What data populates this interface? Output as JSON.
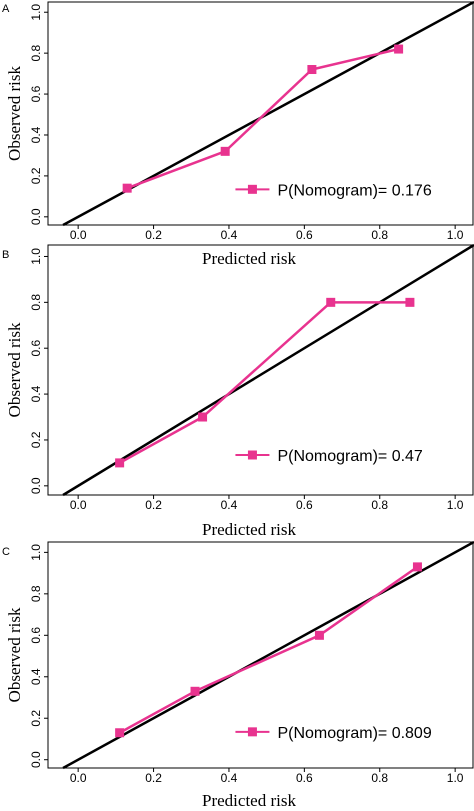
{
  "chart_data": [
    {
      "type": "line",
      "panel_label": "A",
      "xlabel": "Predicted risk",
      "ylabel": "Observed risk",
      "xlim": [
        -0.08,
        1.05
      ],
      "ylim": [
        -0.04,
        1.05
      ],
      "x_ticks": [
        "0.0",
        "0.2",
        "0.4",
        "0.6",
        "0.8",
        "1.0"
      ],
      "y_ticks": [
        "0.0",
        "0.2",
        "0.4",
        "0.6",
        "0.8",
        "1.0"
      ],
      "grid": false,
      "reference_line": "diagonal",
      "legend_position": "bottom-right",
      "series": [
        {
          "name": "P(Nomogram)= 0.176",
          "color": "#e8338f",
          "marker": "square",
          "x": [
            0.13,
            0.39,
            0.62,
            0.85
          ],
          "y": [
            0.14,
            0.32,
            0.72,
            0.82
          ]
        }
      ]
    },
    {
      "type": "line",
      "panel_label": "B",
      "xlabel": "Predicted risk",
      "ylabel": "Observed risk",
      "xlim": [
        -0.08,
        1.05
      ],
      "ylim": [
        -0.04,
        1.05
      ],
      "x_ticks": [
        "0.0",
        "0.2",
        "0.4",
        "0.6",
        "0.8",
        "1.0"
      ],
      "y_ticks": [
        "0.0",
        "0.2",
        "0.4",
        "0.6",
        "0.8",
        "1.0"
      ],
      "grid": false,
      "reference_line": "diagonal",
      "legend_position": "bottom-right",
      "series": [
        {
          "name": "P(Nomogram)= 0.47",
          "color": "#e8338f",
          "marker": "square",
          "x": [
            0.11,
            0.33,
            0.67,
            0.88
          ],
          "y": [
            0.1,
            0.3,
            0.8,
            0.8
          ]
        }
      ]
    },
    {
      "type": "line",
      "panel_label": "C",
      "xlabel": "Predicted risk",
      "ylabel": "Observed risk",
      "xlim": [
        -0.08,
        1.05
      ],
      "ylim": [
        -0.04,
        1.05
      ],
      "x_ticks": [
        "0.0",
        "0.2",
        "0.4",
        "0.6",
        "0.8",
        "1.0"
      ],
      "y_ticks": [
        "0.0",
        "0.2",
        "0.4",
        "0.6",
        "0.8",
        "1.0"
      ],
      "grid": false,
      "reference_line": "diagonal",
      "legend_position": "bottom-right",
      "series": [
        {
          "name": "P(Nomogram)= 0.809",
          "color": "#e8338f",
          "marker": "square",
          "x": [
            0.11,
            0.31,
            0.64,
            0.9
          ],
          "y": [
            0.13,
            0.33,
            0.6,
            0.93
          ]
        }
      ]
    }
  ]
}
